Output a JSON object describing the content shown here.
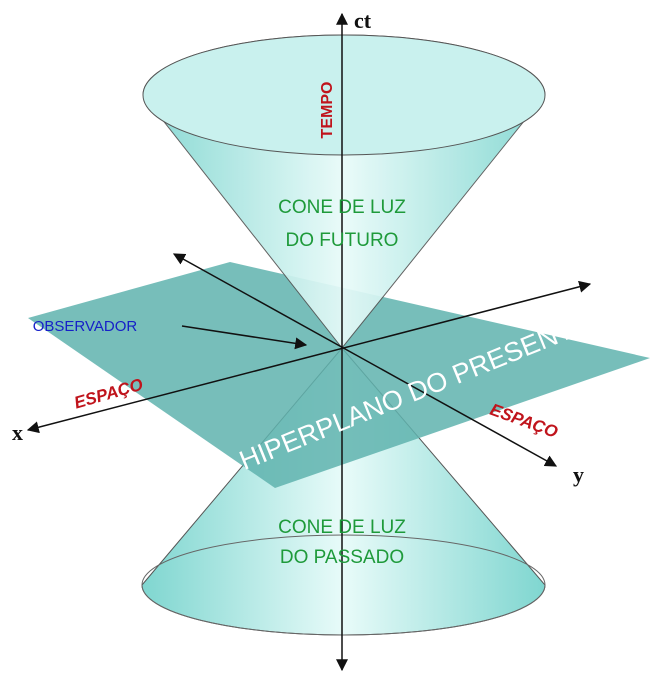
{
  "axes": {
    "ct": "ct",
    "x": "x",
    "y": "y"
  },
  "time_label": "TEMPO",
  "future_cone": [
    "CONE DE LUZ",
    "DO FUTURO"
  ],
  "past_cone": [
    "CONE DE LUZ",
    "DO PASSADO"
  ],
  "observer": "OBSERVADOR",
  "hyperplane": "HIPERPLANO DO PRESENTE",
  "space_labels": [
    "ESPAÇO",
    "ESPAÇO"
  ]
}
